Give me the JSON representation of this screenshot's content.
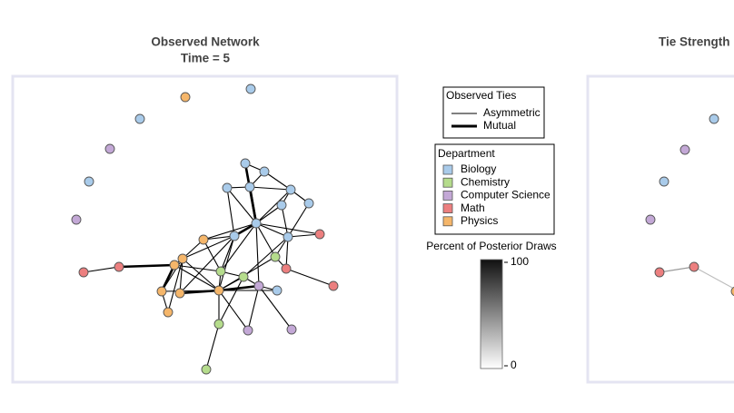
{
  "panels": [
    {
      "title": "Observed Network",
      "subtitle": "Time = 5"
    },
    {
      "title": "Tie Strength"
    }
  ],
  "ties_legend": {
    "title": "Observed Ties",
    "items": [
      "Asymmetric",
      "Mutual"
    ]
  },
  "department_legend": {
    "title": "Department",
    "items": [
      {
        "label": "Biology",
        "color": "#a9cbea"
      },
      {
        "label": "Chemistry",
        "color": "#b5dc8c"
      },
      {
        "label": "Computer Science",
        "color": "#c3a8d6"
      },
      {
        "label": "Math",
        "color": "#ec7f7f"
      },
      {
        "label": "Physics",
        "color": "#f5b66a"
      }
    ]
  },
  "colorbar": {
    "title": "Percent of Posterior Draws",
    "ticks": [
      0,
      100
    ]
  }
}
